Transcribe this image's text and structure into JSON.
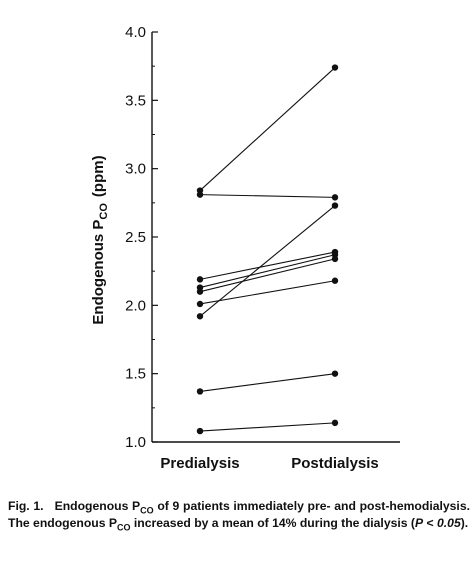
{
  "chart_data": {
    "type": "line",
    "categories": [
      "Predialysis",
      "Postdialysis"
    ],
    "ylabel_main": "Endogenous P",
    "ylabel_sub": "CO",
    "ylabel_unit": "(ppm)",
    "ylim": [
      1.0,
      4.0
    ],
    "yticks": [
      1.0,
      1.5,
      2.0,
      2.5,
      3.0,
      3.5,
      4.0
    ],
    "ytick_labels": [
      "1.0",
      "1.5",
      "2.0",
      "2.5",
      "3.0",
      "3.5",
      "4.0"
    ],
    "series": [
      {
        "values": [
          2.84,
          3.74
        ]
      },
      {
        "values": [
          2.81,
          2.79
        ]
      },
      {
        "values": [
          2.19,
          2.39
        ]
      },
      {
        "values": [
          2.13,
          2.37
        ]
      },
      {
        "values": [
          2.1,
          2.34
        ]
      },
      {
        "values": [
          2.01,
          2.18
        ]
      },
      {
        "values": [
          1.92,
          2.73
        ]
      },
      {
        "values": [
          1.37,
          1.5
        ]
      },
      {
        "values": [
          1.08,
          1.14
        ]
      }
    ],
    "grid": false,
    "legend": "none"
  },
  "caption": {
    "fig_label": "Fig. 1.",
    "t1": "Endogenous P",
    "s1": "CO",
    "t2": " of 9 patients immediately pre- and post-hemodialysis. The endogenous P",
    "s2": "CO",
    "t3": " increased by a mean of 14% during the dialysis (",
    "p_italic": "P",
    "t4": " < ",
    "p_value": "0.05",
    "t5": ")."
  }
}
